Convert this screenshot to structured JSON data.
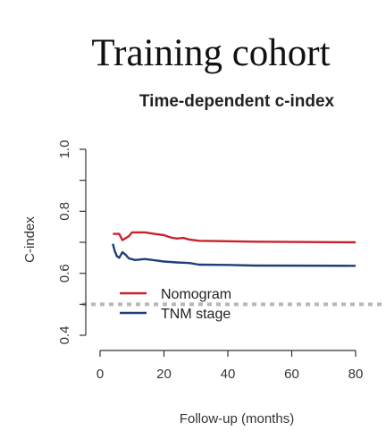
{
  "page": {
    "heading": "Training cohort"
  },
  "colors": {
    "nomogram": "#c8232c",
    "tnm": "#1f3f7a",
    "reference": "#b8b8b8",
    "axis": "#333333"
  },
  "chart_data": {
    "type": "line",
    "title": "Time-dependent c-index",
    "xlabel": "Follow-up (months)",
    "ylabel": "C-index",
    "xlim": [
      0,
      80
    ],
    "ylim": [
      0.4,
      1.0
    ],
    "xticks": [
      0,
      20,
      40,
      60,
      80
    ],
    "yticks": [
      0.4,
      0.6,
      0.8,
      1.0
    ],
    "xtick_labels": [
      "0",
      "20",
      "40",
      "60",
      "80"
    ],
    "ytick_labels": [
      "0.4",
      "0.6",
      "0.8",
      "1.0"
    ],
    "reference_line": 0.5,
    "grid": false,
    "legend_position": "inside-bottom-left",
    "series": [
      {
        "name": "Nomogram",
        "color": "#c8232c",
        "points": [
          [
            4,
            0.727
          ],
          [
            6,
            0.727
          ],
          [
            7,
            0.707
          ],
          [
            9,
            0.72
          ],
          [
            10,
            0.732
          ],
          [
            14,
            0.732
          ],
          [
            17,
            0.727
          ],
          [
            20,
            0.723
          ],
          [
            22,
            0.716
          ],
          [
            24,
            0.712
          ],
          [
            26,
            0.714
          ],
          [
            28,
            0.709
          ],
          [
            31,
            0.705
          ],
          [
            48,
            0.702
          ],
          [
            80,
            0.7
          ]
        ]
      },
      {
        "name": "TNM stage",
        "color": "#1f3f7a",
        "points": [
          [
            4,
            0.695
          ],
          [
            4.6,
            0.672
          ],
          [
            5.3,
            0.655
          ],
          [
            6,
            0.65
          ],
          [
            7,
            0.668
          ],
          [
            8,
            0.66
          ],
          [
            9,
            0.648
          ],
          [
            11,
            0.643
          ],
          [
            14,
            0.646
          ],
          [
            17,
            0.642
          ],
          [
            20,
            0.638
          ],
          [
            24,
            0.635
          ],
          [
            28,
            0.633
          ],
          [
            31,
            0.628
          ],
          [
            40,
            0.627
          ],
          [
            48,
            0.625
          ],
          [
            80,
            0.624
          ]
        ]
      }
    ]
  }
}
